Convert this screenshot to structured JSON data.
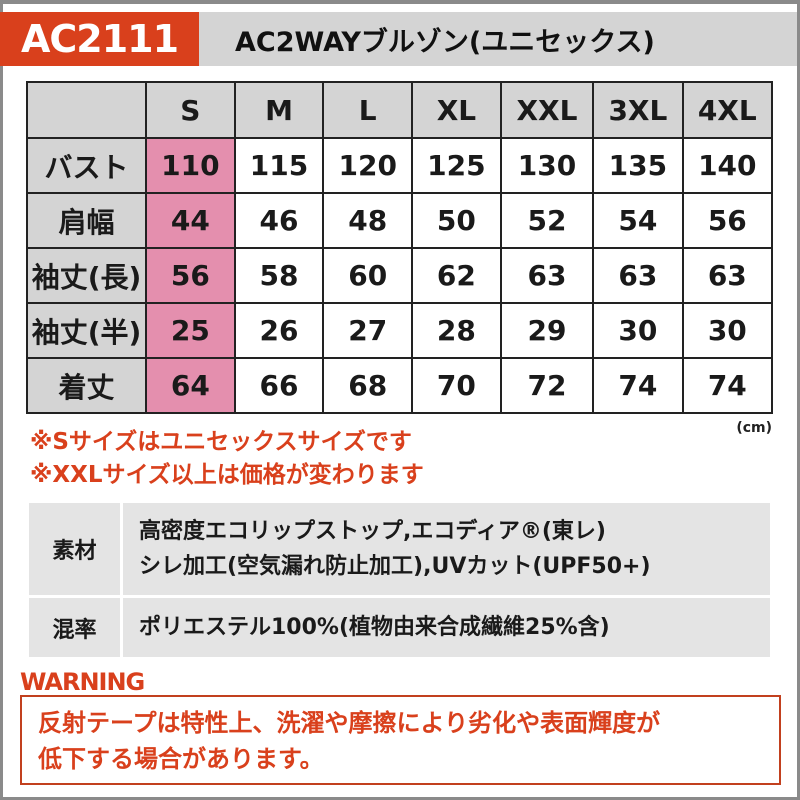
{
  "header": {
    "code": "AC2111",
    "title": "AC2WAYブルゾン(ユニセックス)"
  },
  "size_table": {
    "sizes": [
      "S",
      "M",
      "L",
      "XL",
      "XXL",
      "3XL",
      "4XL"
    ],
    "rows": [
      {
        "label": "バスト",
        "values": [
          "110",
          "115",
          "120",
          "125",
          "130",
          "135",
          "140"
        ]
      },
      {
        "label": "肩幅",
        "values": [
          "44",
          "46",
          "48",
          "50",
          "52",
          "54",
          "56"
        ]
      },
      {
        "label": "袖丈(長)",
        "values": [
          "56",
          "58",
          "60",
          "62",
          "63",
          "63",
          "63"
        ]
      },
      {
        "label": "袖丈(半)",
        "values": [
          "25",
          "26",
          "27",
          "28",
          "29",
          "30",
          "30"
        ]
      },
      {
        "label": "着丈",
        "values": [
          "64",
          "66",
          "68",
          "70",
          "72",
          "74",
          "74"
        ]
      }
    ],
    "unit": "(cm)"
  },
  "notes": [
    "※Sサイズはユニセックスサイズです",
    "※XXLサイズ以上は価格が変わります"
  ],
  "material": {
    "rows": [
      {
        "label": "素材",
        "lines": [
          "高密度エコリップストップ,エコディア®(東レ)",
          "シレ加工(空気漏れ防止加工),UVカット(UPF50+)"
        ]
      },
      {
        "label": "混率",
        "lines": [
          "ポリエステル100%(植物由来合成繊維25%含)"
        ]
      }
    ]
  },
  "warning": {
    "label": "WARNING",
    "lines": [
      "反射テープは特性上、洗濯や摩擦により劣化や表面輝度が",
      "低下する場合があります。"
    ]
  },
  "colors": {
    "accent": "#d9401c",
    "highlight": "#e48fae",
    "gray": "#d4d4d4"
  }
}
